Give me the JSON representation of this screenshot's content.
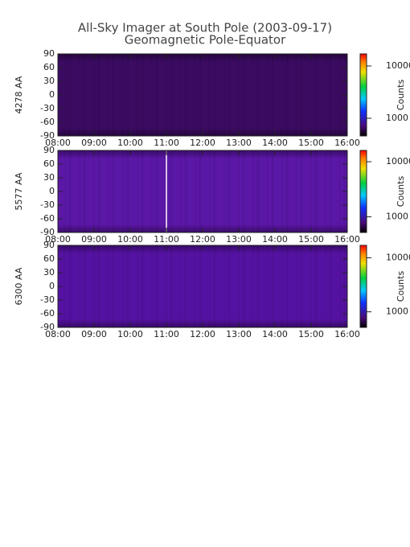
{
  "chart_data": {
    "type": "keogram",
    "title": "All-Sky Imager at South Pole (2003-09-17)",
    "subtitle": "Geomagnetic Pole-Equator",
    "xticks": [
      "08:00",
      "09:00",
      "10:00",
      "11:00",
      "12:00",
      "13:00",
      "14:00",
      "15:00",
      "16:00"
    ],
    "ylim": [
      -90,
      90
    ],
    "yticks": [
      -90,
      -60,
      -30,
      0,
      30,
      60,
      90
    ],
    "colorbar_label": "Counts",
    "colorbar_log_scale": true,
    "panels": [
      {
        "ylabel": "4278 AA",
        "color": "#3b0b62",
        "edge_color": "#26063f",
        "clim": [
          460,
          17000
        ],
        "cticks": [
          1000,
          10000
        ]
      },
      {
        "ylabel": "5577 AA",
        "color": "#5b17a6",
        "edge_color": "#3a0c6a",
        "clim": [
          520,
          16000
        ],
        "cticks": [
          1000,
          10000
        ]
      },
      {
        "ylabel": "6300 AA",
        "color": "#5512a2",
        "edge_color": "#360a66",
        "clim": [
          515,
          17000
        ],
        "cticks": [
          1000,
          10000
        ]
      }
    ]
  }
}
